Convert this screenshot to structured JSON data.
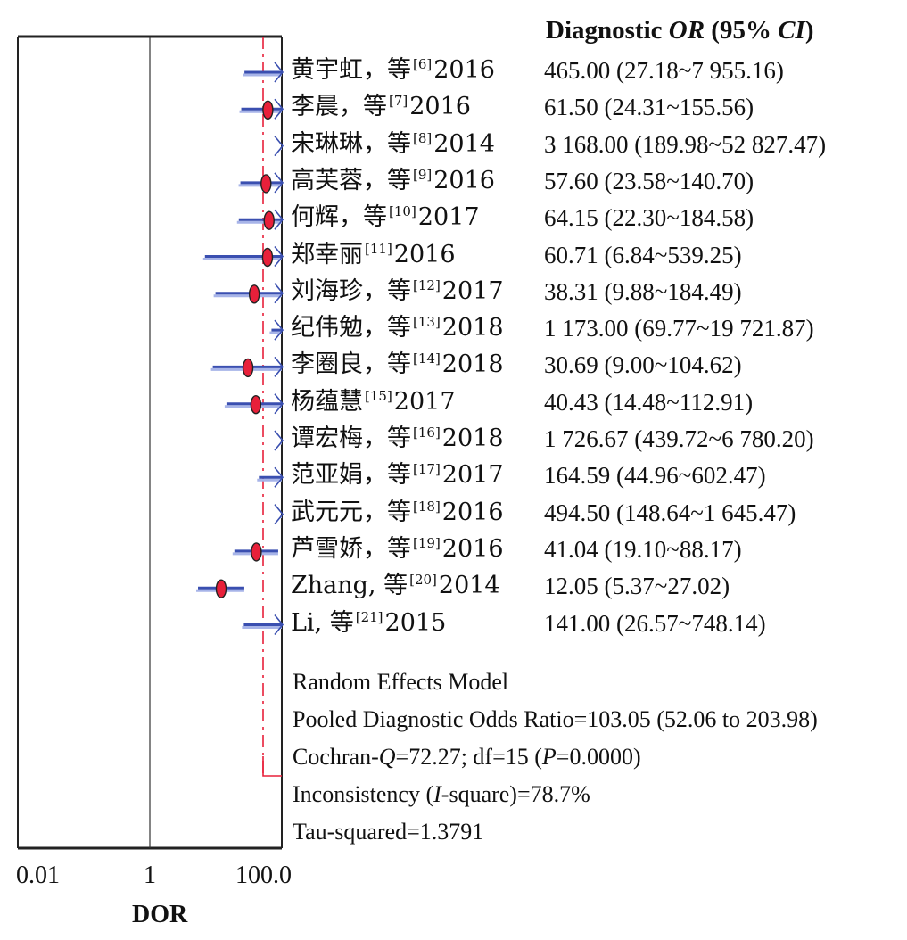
{
  "chart_data": {
    "type": "forest",
    "column_header": {
      "prefix": "Diagnostic ",
      "or": "OR",
      "mid": " (95% ",
      "ci": "CI",
      "suffix": ")"
    },
    "x_ticks": [
      "0.01",
      "1",
      "100.0"
    ],
    "xlabel": "DOR",
    "x_scale": "log",
    "xlim": [
      0.01,
      100
    ],
    "pooled_estimate": 103.05,
    "studies": [
      {
        "author": "黄宇虹，等",
        "ref": "[6]",
        "year": "2016",
        "or_text": "465.00 (27.18~7 955.16)",
        "or": 465.0,
        "lo": 27.18,
        "hi": 7955.16
      },
      {
        "author": "李晨，等",
        "ref": "[7]",
        "year": "2016",
        "or_text": "61.50 (24.31~155.56)",
        "or": 61.5,
        "lo": 24.31,
        "hi": 155.56
      },
      {
        "author": "宋琳琳，等",
        "ref": "[8]",
        "year": "2014",
        "or_text": "3 168.00 (189.98~52 827.47)",
        "or": 3168.0,
        "lo": 189.98,
        "hi": 52827.47
      },
      {
        "author": "高芙蓉，等",
        "ref": "[9]",
        "year": "2016",
        "or_text": "57.60 (23.58~140.70)",
        "or": 57.6,
        "lo": 23.58,
        "hi": 140.7
      },
      {
        "author": "何辉，等",
        "ref": "[10]",
        "year": "2017",
        "or_text": "64.15 (22.30~184.58)",
        "or": 64.15,
        "lo": 22.3,
        "hi": 184.58
      },
      {
        "author": "郑幸丽",
        "ref": "[11]",
        "year": "2016",
        "or_text": "60.71 (6.84~539.25)",
        "or": 60.71,
        "lo": 6.84,
        "hi": 539.25
      },
      {
        "author": "刘海珍，等",
        "ref": "[12]",
        "year": "2017",
        "or_text": "38.31 (9.88~184.49)",
        "or": 38.31,
        "lo": 9.88,
        "hi": 184.49
      },
      {
        "author": "纪伟勉，等",
        "ref": "[13]",
        "year": "2018",
        "or_text": "1 173.00 (69.77~19 721.87)",
        "or": 1173.0,
        "lo": 69.77,
        "hi": 19721.87
      },
      {
        "author": "李圈良，等",
        "ref": "[14]",
        "year": "2018",
        "or_text": "30.69 (9.00~104.62)",
        "or": 30.69,
        "lo": 9.0,
        "hi": 104.62
      },
      {
        "author": "杨蕴慧",
        "ref": "[15]",
        "year": "2017",
        "or_text": "40.43 (14.48~112.91)",
        "or": 40.43,
        "lo": 14.48,
        "hi": 112.91
      },
      {
        "author": "谭宏梅，等",
        "ref": "[16]",
        "year": "2018",
        "or_text": "1 726.67 (439.72~6 780.20)",
        "or": 1726.67,
        "lo": 439.72,
        "hi": 6780.2
      },
      {
        "author": "范亚娟，等",
        "ref": "[17]",
        "year": "2017",
        "or_text": "164.59 (44.96~602.47)",
        "or": 164.59,
        "lo": 44.96,
        "hi": 602.47
      },
      {
        "author": "武元元，等",
        "ref": "[18]",
        "year": "2016",
        "or_text": "494.50 (148.64~1 645.47)",
        "or": 494.5,
        "lo": 148.64,
        "hi": 1645.47
      },
      {
        "author": "芦雪娇，等",
        "ref": "[19]",
        "year": "2016",
        "or_text": "41.04 (19.10~88.17)",
        "or": 41.04,
        "lo": 19.1,
        "hi": 88.17
      },
      {
        "author": "Zhang, 等",
        "ref": "[20]",
        "year": "2014",
        "or_text": "12.05 (5.37~27.02)",
        "or": 12.05,
        "lo": 5.37,
        "hi": 27.02
      },
      {
        "author": "Li, 等",
        "ref": "[21]",
        "year": "2015",
        "or_text": "141.00 (26.57~748.14)",
        "or": 141.0,
        "lo": 26.57,
        "hi": 748.14
      }
    ],
    "summary": {
      "model": "Random Effects Model",
      "pooled_prefix": "Pooled Diagnostic Odds Ratio=103.05 (52.06 to 203.98)",
      "cochran_prefix": "Cochran-",
      "cochran_q": "Q",
      "cochran_mid": "=72.27; df=15 (",
      "cochran_p": "P",
      "cochran_suffix": "=0.0000)",
      "incons_prefix": "Inconsistency (",
      "incons_i": "I",
      "incons_suffix": "-square)=78.7%",
      "tau": "Tau-squared=1.3791"
    },
    "colors": {
      "ci_line": "#3a4fb0",
      "ci_line_light": "#a7b4e8",
      "point": "#e8203a",
      "pooled_line": "#e8203a",
      "frame": "#222222"
    }
  }
}
